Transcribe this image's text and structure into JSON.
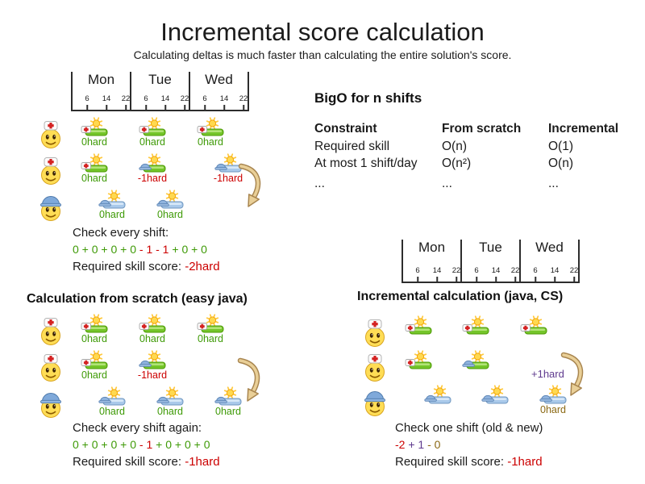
{
  "title": "Incremental score calculation",
  "subtitle": "Calculating deltas is much faster than calculating the entire solution's score.",
  "timeline": {
    "days": [
      "Mon",
      "Tue",
      "Wed"
    ],
    "hours": [
      "6",
      "14",
      "22"
    ]
  },
  "bigo": {
    "title": "BigO for n shifts",
    "columns": [
      "Constraint",
      "From scratch",
      "Incremental"
    ],
    "rows": [
      [
        "Required skill",
        "O(n)",
        "O(1)"
      ],
      [
        "At most 1 shift/day",
        "O(n²)",
        "O(n)"
      ],
      [
        "...",
        "...",
        "..."
      ]
    ]
  },
  "sections": {
    "from_scratch_title": "Calculation from scratch (easy java)",
    "incremental_title": "Incremental calculation (java, CS)"
  },
  "panels": {
    "top": {
      "rows": [
        {
          "person": "nurse",
          "shifts": [
            {
              "col": 0,
              "offset": false,
              "bar": "green",
              "hat": "nurse",
              "label": "0hard",
              "color": "green"
            },
            {
              "col": 1,
              "offset": false,
              "bar": "green",
              "hat": "nurse",
              "label": "0hard",
              "color": "green"
            },
            {
              "col": 2,
              "offset": false,
              "bar": "green",
              "hat": "nurse",
              "label": "0hard",
              "color": "green"
            }
          ]
        },
        {
          "person": "nurse",
          "shifts": [
            {
              "col": 0,
              "offset": false,
              "bar": "green",
              "hat": "nurse",
              "label": "0hard",
              "color": "green"
            },
            {
              "col": 1,
              "offset": false,
              "bar": "green",
              "hat": "helmet",
              "label": "-1hard",
              "color": "red"
            },
            {
              "col": 2,
              "offset": true,
              "bar": "blue",
              "hat": "helmet",
              "label": "-1hard",
              "color": "red"
            }
          ]
        },
        {
          "person": "builder",
          "shifts": [
            {
              "col": 0,
              "offset": true,
              "bar": "blue",
              "hat": "helmet",
              "label": "0hard",
              "color": "green"
            },
            {
              "col": 1,
              "offset": true,
              "bar": "blue",
              "hat": "helmet",
              "label": "0hard",
              "color": "green"
            }
          ]
        }
      ]
    },
    "bottom_left": {
      "rows": [
        {
          "person": "nurse",
          "shifts": [
            {
              "col": 0,
              "offset": false,
              "bar": "green",
              "hat": "nurse",
              "label": "0hard",
              "color": "green"
            },
            {
              "col": 1,
              "offset": false,
              "bar": "green",
              "hat": "nurse",
              "label": "0hard",
              "color": "green"
            },
            {
              "col": 2,
              "offset": false,
              "bar": "green",
              "hat": "nurse",
              "label": "0hard",
              "color": "green"
            }
          ]
        },
        {
          "person": "nurse",
          "shifts": [
            {
              "col": 0,
              "offset": false,
              "bar": "green",
              "hat": "nurse",
              "label": "0hard",
              "color": "green"
            },
            {
              "col": 1,
              "offset": false,
              "bar": "green",
              "hat": "helmet",
              "label": "-1hard",
              "color": "red"
            }
          ]
        },
        {
          "person": "builder",
          "shifts": [
            {
              "col": 0,
              "offset": true,
              "bar": "blue",
              "hat": "helmet",
              "label": "0hard",
              "color": "green"
            },
            {
              "col": 1,
              "offset": true,
              "bar": "blue",
              "hat": "helmet",
              "label": "0hard",
              "color": "green"
            },
            {
              "col": 2,
              "offset": true,
              "bar": "blue",
              "hat": "helmet",
              "label": "0hard",
              "color": "green"
            }
          ]
        }
      ]
    },
    "bottom_right": {
      "delta_label": "+1hard",
      "rows": [
        {
          "person": "nurse",
          "shifts": [
            {
              "col": 0,
              "offset": false,
              "bar": "green",
              "hat": "nurse"
            },
            {
              "col": 1,
              "offset": false,
              "bar": "green",
              "hat": "nurse"
            },
            {
              "col": 2,
              "offset": false,
              "bar": "green",
              "hat": "nurse"
            }
          ]
        },
        {
          "person": "nurse",
          "shifts": [
            {
              "col": 0,
              "offset": false,
              "bar": "green",
              "hat": "nurse"
            },
            {
              "col": 1,
              "offset": false,
              "bar": "green",
              "hat": "helmet"
            }
          ]
        },
        {
          "person": "builder",
          "shifts": [
            {
              "col": 0,
              "offset": true,
              "bar": "blue",
              "hat": "helmet"
            },
            {
              "col": 1,
              "offset": true,
              "bar": "blue",
              "hat": "helmet"
            },
            {
              "col": 2,
              "offset": true,
              "bar": "blue",
              "hat": "helmet",
              "label": "0hard",
              "color": "brown"
            }
          ]
        }
      ]
    }
  },
  "checks": {
    "top": {
      "heading": "Check every shift:",
      "sum": [
        {
          "t": "0 + 0 + 0 + 0",
          "c": "green"
        },
        {
          "t": " - 1 - 1",
          "c": "red"
        },
        {
          "t": " + 0 + 0",
          "c": "green"
        }
      ],
      "score_label": "Required skill score: ",
      "score_value": "-2hard"
    },
    "bottom_left": {
      "heading": "Check every shift again:",
      "sum": [
        {
          "t": "0 + 0 + 0 + 0",
          "c": "green"
        },
        {
          "t": " - 1",
          "c": "red"
        },
        {
          "t": " + 0 + 0 + 0",
          "c": "green"
        }
      ],
      "score_label": "Required skill score: ",
      "score_value": "-1hard"
    },
    "bottom_right": {
      "heading": "Check one shift (old & new)",
      "sum": [
        {
          "t": "-2",
          "c": "red"
        },
        {
          "t": " + 1",
          "c": "purple"
        },
        {
          "t": " - 0",
          "c": "brown"
        }
      ],
      "score_label": "Required skill score: ",
      "score_value": "-1hard"
    }
  },
  "colors": {
    "green": "#3e9a06",
    "red": "#cc0000",
    "purple": "#5f3a8e",
    "brown": "#8b6914",
    "bar_green": "#74c52a",
    "bar_blue": "#a9c9ea",
    "arrow_fill": "#e9cf97",
    "arrow_stroke": "#a8854f"
  },
  "icons": {
    "nurse": "nurse-face-icon",
    "builder": "builder-face-icon",
    "sun": "sun-icon",
    "nurse_hat": "nurse-hat-icon",
    "helmet": "helmet-icon",
    "arrow": "move-arrow-icon"
  }
}
